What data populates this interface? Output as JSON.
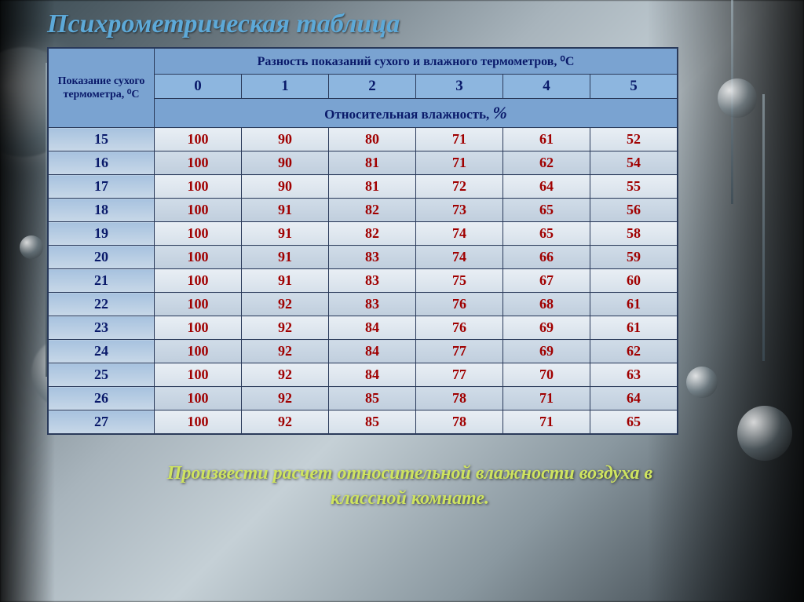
{
  "title": "Психрометрическая таблица",
  "footer_line1": "Произвести расчет относительной влажности воздуха в",
  "footer_line2": "классной комнате.",
  "table": {
    "row_header": "Показание сухого термометра, ⁰С",
    "diff_header": "Разность показаний сухого и влажного термометров, ⁰С",
    "rel_humidity_header": "Относительная влажность,",
    "percent_sign": "%",
    "diff_columns": [
      0,
      1,
      2,
      3,
      4,
      5
    ],
    "rows": [
      {
        "t": 15,
        "v": [
          100,
          90,
          80,
          71,
          61,
          52
        ]
      },
      {
        "t": 16,
        "v": [
          100,
          90,
          81,
          71,
          62,
          54
        ]
      },
      {
        "t": 17,
        "v": [
          100,
          90,
          81,
          72,
          64,
          55
        ]
      },
      {
        "t": 18,
        "v": [
          100,
          91,
          82,
          73,
          65,
          56
        ]
      },
      {
        "t": 19,
        "v": [
          100,
          91,
          82,
          74,
          65,
          58
        ]
      },
      {
        "t": 20,
        "v": [
          100,
          91,
          83,
          74,
          66,
          59
        ]
      },
      {
        "t": 21,
        "v": [
          100,
          91,
          83,
          75,
          67,
          60
        ]
      },
      {
        "t": 22,
        "v": [
          100,
          92,
          83,
          76,
          68,
          61
        ]
      },
      {
        "t": 23,
        "v": [
          100,
          92,
          84,
          76,
          69,
          61
        ]
      },
      {
        "t": 24,
        "v": [
          100,
          92,
          84,
          77,
          69,
          62
        ]
      },
      {
        "t": 25,
        "v": [
          100,
          92,
          84,
          77,
          70,
          63
        ]
      },
      {
        "t": 26,
        "v": [
          100,
          92,
          85,
          78,
          71,
          64
        ]
      },
      {
        "t": 27,
        "v": [
          100,
          92,
          85,
          78,
          71,
          65
        ]
      }
    ],
    "colors": {
      "header_bg": "#7aa3d1",
      "numhead_bg": "#8db6df",
      "header_text": "#0a1a6a",
      "data_text": "#a00000",
      "border": "#2a3a5a",
      "title_color": "#5da9d8",
      "footer_color": "#cfe460"
    }
  }
}
